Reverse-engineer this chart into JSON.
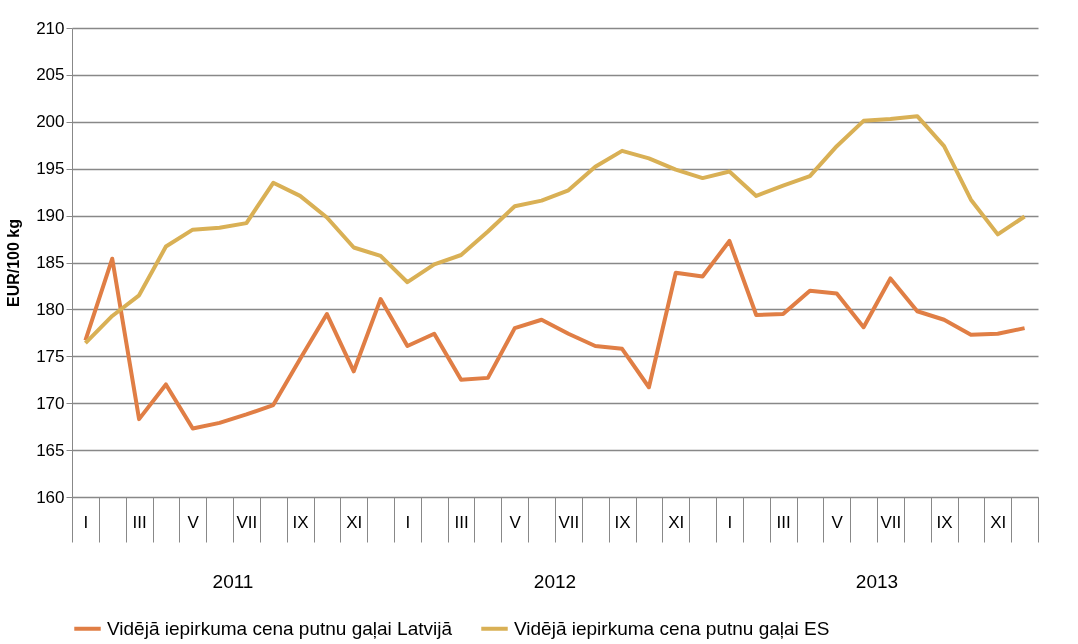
{
  "chart_data": {
    "type": "line",
    "ylabel": "EUR/100 kg",
    "categories": [
      "I",
      null,
      "III",
      null,
      "V",
      null,
      "VII",
      null,
      "IX",
      null,
      "XI",
      null,
      "I",
      null,
      "III",
      null,
      "V",
      null,
      "VII",
      null,
      "IX",
      null,
      "XI",
      null,
      "I",
      null,
      "III",
      null,
      "V",
      null,
      "VII",
      null,
      "IX",
      null,
      "XI",
      null
    ],
    "series": [
      {
        "name": "Vidējā iepirkuma cena putnu gaļai Latvijā",
        "color": "#e07e45",
        "values": [
          176.7,
          185.4,
          168.3,
          172.0,
          167.3,
          167.9,
          168.8,
          169.8,
          174.7,
          179.5,
          173.4,
          181.1,
          176.1,
          177.4,
          172.5,
          172.7,
          178.0,
          178.9,
          177.4,
          176.1,
          175.8,
          171.7,
          183.9,
          183.5,
          187.3,
          179.4,
          179.5,
          182.0,
          181.7,
          178.1,
          183.3,
          179.8,
          178.9,
          177.3,
          177.4,
          178.0
        ]
      },
      {
        "name": "Vidējā iepirkuma cena putnu gaļai ES",
        "color": "#d9b055",
        "values": [
          176.4,
          179.3,
          181.5,
          186.7,
          188.5,
          188.7,
          189.2,
          193.5,
          192.1,
          189.8,
          186.6,
          185.7,
          182.9,
          184.8,
          185.8,
          188.3,
          191.0,
          191.6,
          192.7,
          195.2,
          196.9,
          196.1,
          194.9,
          194.0,
          194.7,
          192.1,
          193.2,
          194.2,
          197.4,
          200.1,
          200.3,
          200.6,
          197.4,
          191.7,
          188.0,
          189.9
        ]
      }
    ],
    "ylim": [
      160,
      210
    ],
    "yticks": [
      160,
      165,
      170,
      175,
      180,
      185,
      190,
      195,
      200,
      205,
      210
    ],
    "grid": "y",
    "legend": "bottom",
    "line_style": "solid",
    "annotations": [
      "2011",
      "2012",
      "2013"
    ]
  }
}
